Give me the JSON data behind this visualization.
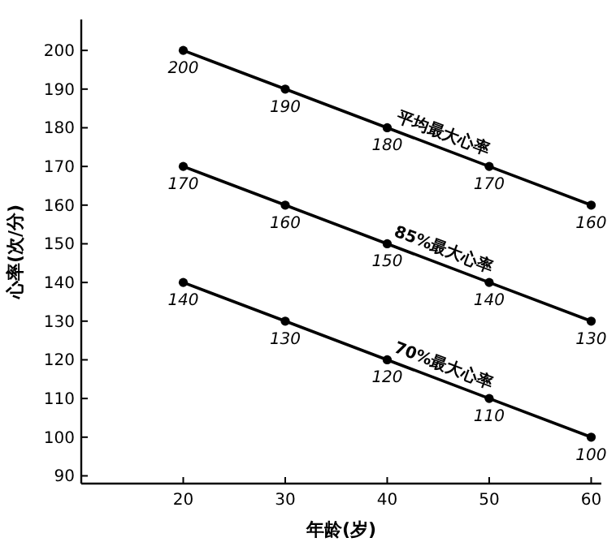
{
  "chart_data": {
    "type": "line",
    "xlabel": "年龄(岁)",
    "ylabel": "心率(次/分)",
    "x": [
      20,
      30,
      40,
      50,
      60
    ],
    "series": [
      {
        "name": "平均最大心率",
        "color": "#000000",
        "values": [
          200,
          190,
          180,
          170,
          160
        ]
      },
      {
        "name": "85%最大心率",
        "color": "#000000",
        "values": [
          170,
          160,
          150,
          140,
          130
        ]
      },
      {
        "name": "70%最大心率",
        "color": "#000000",
        "values": [
          140,
          130,
          120,
          110,
          100
        ]
      }
    ],
    "xlim": [
      10,
      61
    ],
    "ylim": [
      88,
      208
    ],
    "xticks": [
      20,
      30,
      40,
      50,
      60
    ],
    "yticks": [
      90,
      100,
      110,
      120,
      130,
      140,
      150,
      160,
      170,
      180,
      190,
      200
    ],
    "marker": "circle",
    "data_labels": true,
    "legend": false,
    "grid": false
  }
}
